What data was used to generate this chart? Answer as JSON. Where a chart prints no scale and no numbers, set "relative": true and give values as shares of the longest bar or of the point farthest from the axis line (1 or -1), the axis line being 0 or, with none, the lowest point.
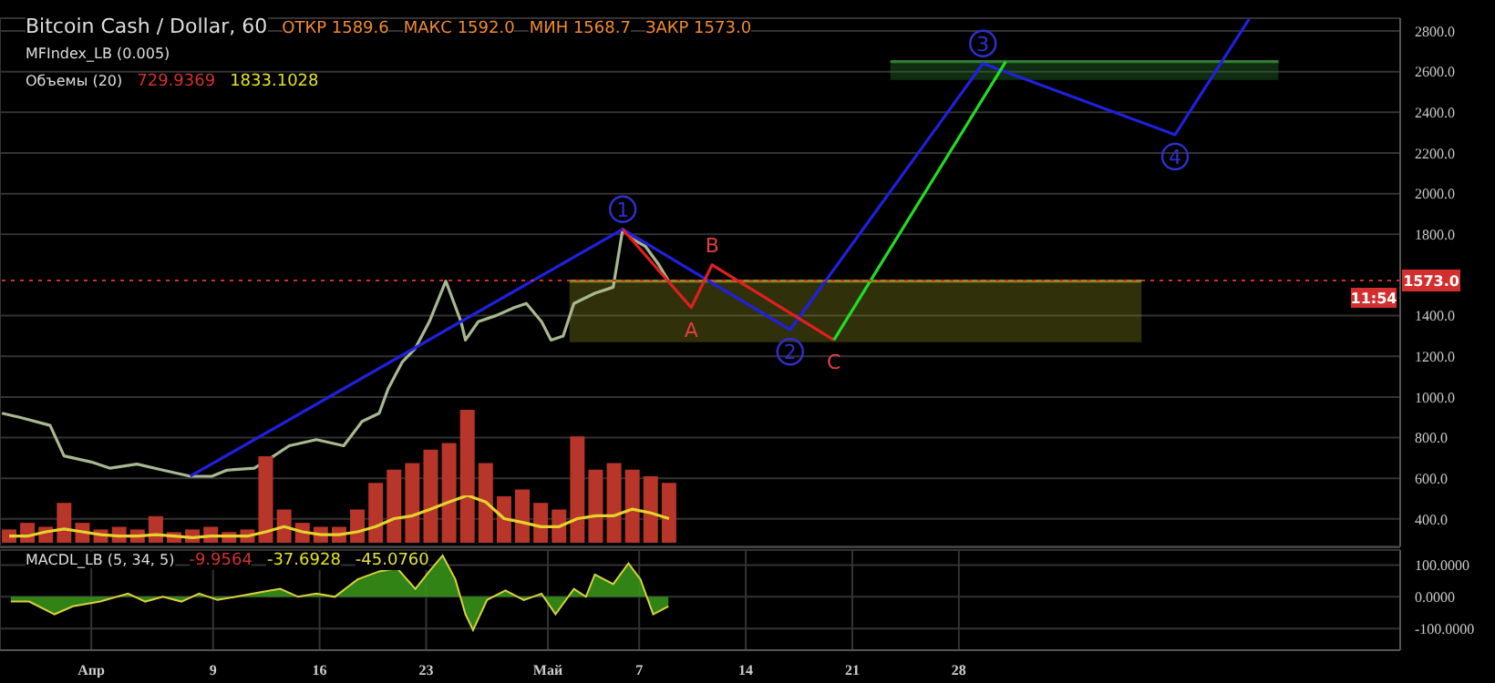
{
  "chart_data": [
    {
      "type": "line",
      "title": "Bitcoin Cash / Dollar, 60",
      "subtitle": "MFIndex_LB (0.005)",
      "annotations": [
        "ОТКР 1589.6",
        "МАКС 1592.0",
        "МИН 1568.7",
        "ЗАКР 1573.0",
        {
          "text": "1",
          "x": "--05-05T22:00",
          "y": 1825
        },
        {
          "text": "2",
          "x": "--05-16T22:00",
          "y": 1330
        },
        {
          "text": "3",
          "x": "--05-29T14:00",
          "y": 2640
        },
        {
          "text": "4",
          "x": "--06-11T05:00",
          "y": 2290
        },
        {
          "text": "A",
          "x": "--05-10T10:00",
          "y": 1440
        },
        {
          "text": "B",
          "x": "--05-11T19:00",
          "y": 1650
        },
        {
          "text": "C",
          "x": "--05-19T19:00",
          "y": 1280
        },
        "11:54"
      ],
      "xlim": [
        "--03-26T00:00",
        "--06-26T00:00"
      ],
      "xticks": [
        {
          "value": "--04-01T00:00",
          "label": "Апр"
        },
        {
          "value": "--04-09T00:00",
          "label": "9"
        },
        {
          "value": "--04-16T00:00",
          "label": "16"
        },
        {
          "value": "--04-23T00:00",
          "label": "23"
        },
        {
          "value": "--05-01T00:00",
          "label": "Май"
        },
        {
          "value": "--05-07T00:00",
          "label": "7"
        },
        {
          "value": "--05-14T00:00",
          "label": "14"
        },
        {
          "value": "--05-21T00:00",
          "label": "21"
        },
        {
          "value": "--05-28T00:00",
          "label": "28"
        }
      ],
      "ylim": [
        265,
        2863
      ],
      "yticks": [
        {
          "value": 400,
          "label": "400.0"
        },
        {
          "value": 600,
          "label": "600.0"
        },
        {
          "value": 800,
          "label": "800.0"
        },
        {
          "value": 1000,
          "label": "1000.0"
        },
        {
          "value": 1200,
          "label": "1200.0"
        },
        {
          "value": 1400,
          "label": "1400.0"
        },
        {
          "value": 1800,
          "label": "1800.0"
        },
        {
          "value": 2000,
          "label": "2000.0"
        },
        {
          "value": 2200,
          "label": "2200.0"
        },
        {
          "value": 2400,
          "label": "2400.0"
        },
        {
          "value": 2600,
          "label": "2600.0"
        },
        {
          "value": 2800,
          "label": "2800.0"
        }
      ],
      "grid": true,
      "tick_labels": "y",
      "marker": "none",
      "ref_lines": [
        {
          "axis": "y",
          "value": 1573,
          "label": "1573.0",
          "color": "#d32f2f",
          "line_style": "dotted"
        }
      ],
      "series": [
        {
          "type": "line",
          "color": "#8a8a20",
          "x": [
            "--05-02T10:00",
            "--06-09T00:00"
          ],
          "values": [
            1570,
            1570
          ],
          "lower": [
            1270,
            1270
          ],
          "upper": [
            1570,
            1570
          ]
        },
        {
          "type": "line",
          "color": "#2e7d32",
          "x": [
            "--05-23T12:00",
            "--06-18T00:00"
          ],
          "values": [
            2650,
            2650
          ],
          "lower": [
            2560,
            2560
          ],
          "upper": [
            2650,
            2650
          ]
        },
        {
          "type": "line",
          "color": "#a8b890",
          "x": [
            "--03-26T03:00",
            "--03-27T07:00",
            "--03-29T07:00",
            "--03-30T05:00",
            "--04-01T00:00",
            "--04-02T05:00",
            "--04-04T00:00",
            "--04-05T17:00",
            "--04-07T12:00",
            "--04-08T22:00",
            "--04-09T22:00",
            "--04-11T17:00",
            "--04-12T19:00",
            "--04-14T00:00",
            "--04-15T19:00",
            "--04-17T14:00",
            "--04-18T19:00",
            "--04-19T22:00",
            "--04-20T12:00",
            "--04-21T10:00",
            "--04-22T07:00",
            "--04-23T05:00",
            "--04-24T07:00",
            "--04-25T07:00",
            "--04-25T14:00",
            "--04-26T10:00",
            "--04-27T14:00",
            "--04-28T19:00",
            "--04-29T14:00",
            "--04-30T14:00",
            "--05-01T05:00",
            "--05-02T00:00",
            "--05-02T17:00",
            "--05-04T02:00",
            "--05-05T07:00",
            "--05-05T22:00",
            "--05-06T12:00",
            "--05-07T10:00",
            "--05-08T07:00",
            "--05-08T22:00"
          ],
          "values": [
            920,
            900,
            860,
            710,
            680,
            650,
            670,
            640,
            610,
            610,
            640,
            650,
            700,
            760,
            790,
            760,
            880,
            920,
            1040,
            1170,
            1240,
            1370,
            1570,
            1370,
            1280,
            1370,
            1400,
            1440,
            1460,
            1370,
            1280,
            1300,
            1460,
            1510,
            1540,
            1825,
            1780,
            1740,
            1650,
            1573
          ]
        },
        {
          "type": "line",
          "color": "#2020e0",
          "x": [
            "--04-07T12:00",
            "--05-05T22:00",
            "--05-16T22:00",
            "--05-29T14:00",
            "--06-11T05:00",
            "--06-16T02:00"
          ],
          "values": [
            610,
            1825,
            1330,
            2640,
            2290,
            2860
          ]
        },
        {
          "type": "line",
          "color": "#e02020",
          "x": [
            "--05-05T22:00",
            "--05-10T10:00",
            "--05-11T19:00",
            "--05-19T19:00"
          ],
          "values": [
            1825,
            1440,
            1650,
            1280
          ]
        },
        {
          "type": "line",
          "color": "#22dd22",
          "x": [
            "--05-19T19:00",
            "--05-31T02:00"
          ],
          "values": [
            1280,
            2650
          ]
        }
      ]
    },
    {
      "type": "bar",
      "title": "Объемы (20)",
      "annotations": [
        "729.9369",
        "1833.1028"
      ],
      "relative": true,
      "tick_labels": false,
      "categories": [
        null,
        null,
        null,
        null,
        null,
        null,
        null,
        null,
        null,
        null,
        null,
        null,
        null,
        null,
        null,
        null,
        null,
        null,
        null,
        null,
        null,
        null,
        null,
        null,
        null,
        null,
        null,
        null,
        null,
        null,
        null,
        null,
        null,
        null,
        null,
        null,
        null
      ],
      "series": [
        {
          "type": "bar",
          "color": "#b8352a",
          "values": [
            0.1,
            0.15,
            0.12,
            0.3,
            0.15,
            0.1,
            0.12,
            0.1,
            0.2,
            0.08,
            0.1,
            0.12,
            0.08,
            0.1,
            0.65,
            0.25,
            0.15,
            0.12,
            0.12,
            0.25,
            0.45,
            0.55,
            0.6,
            0.7,
            0.75,
            1,
            0.6,
            0.35,
            0.4,
            0.3,
            0.25,
            0.8,
            0.55,
            0.6,
            0.55,
            0.5,
            0.45
          ]
        }
      ]
    },
    {
      "type": "line",
      "relative": true,
      "tick_labels": false,
      "marker": "none",
      "categories": [
        null,
        null,
        null,
        null,
        null,
        null,
        null,
        null,
        null,
        null,
        null,
        null,
        null,
        null,
        null,
        null,
        null,
        null,
        null,
        null,
        null,
        null,
        null,
        null,
        null,
        null,
        null,
        null,
        null,
        null,
        null,
        null,
        null,
        null,
        null,
        null,
        null
      ],
      "series": [
        {
          "color": "#e6d22c",
          "values": [
            0.14,
            0.14,
            0.23,
            0.29,
            0.23,
            0.17,
            0.14,
            0.14,
            0.17,
            0.14,
            0.11,
            0.14,
            0.14,
            0.14,
            0.23,
            0.34,
            0.23,
            0.17,
            0.17,
            0.23,
            0.34,
            0.51,
            0.57,
            0.71,
            0.86,
            1,
            0.86,
            0.51,
            0.43,
            0.34,
            0.34,
            0.51,
            0.57,
            0.57,
            0.71,
            0.63,
            0.51
          ]
        }
      ]
    },
    {
      "type": "area",
      "title": "MACDL_LB (5, 34, 5)",
      "annotations": [
        "-9.9564",
        "-37.6928",
        "-45.0760"
      ],
      "xlim": [
        "--03-26T00:00",
        "--06-26T00:00"
      ],
      "xticks": [
        {
          "value": "--04-01T00:00",
          "label": "Апр"
        },
        {
          "value": "--04-09T00:00",
          "label": "9"
        },
        {
          "value": "--04-16T00:00",
          "label": "16"
        },
        {
          "value": "--04-23T00:00",
          "label": "23"
        },
        {
          "value": "--05-01T00:00",
          "label": "Май"
        },
        {
          "value": "--05-07T00:00",
          "label": "7"
        },
        {
          "value": "--05-14T00:00",
          "label": "14"
        },
        {
          "value": "--05-21T00:00",
          "label": "21"
        },
        {
          "value": "--05-28T00:00",
          "label": "28"
        }
      ],
      "ylim": [
        -168,
        147
      ],
      "yticks": [
        {
          "value": -100,
          "label": "-100.0000"
        },
        {
          "value": 0,
          "label": "0.0000"
        },
        {
          "value": 100,
          "label": "100.0000"
        }
      ],
      "grid": true,
      "x": [
        "--03-26T17:00",
        "--03-27T22:00",
        "--03-29T14:00",
        "--03-30T19:00",
        "--04-01T14:00",
        "--04-03T10:00",
        "--04-04T13:00",
        "--04-05T17:00",
        "--04-06T22:00",
        "--04-08T02:00",
        "--04-09T07:00",
        "--04-10T12:00",
        "--04-12T05:00",
        "--04-13T10:00",
        "--04-14T14:00",
        "--04-15T19:00",
        "--04-17T00:00",
        "--04-18T12:00",
        "--04-19T22:00",
        "--04-21T02:00",
        "--04-22T07:00",
        "--04-23T05:00",
        "--04-24T02:00",
        "--04-24T22:00",
        "--04-25T14:00",
        "--04-26T02:00",
        "--04-27T00:00",
        "--04-28T05:00",
        "--04-29T10:00",
        "--04-30T14:00",
        "--05-01T12:00",
        "--05-02T17:00",
        "--05-03T12:00",
        "--05-04T02:00",
        "--05-05T07:00",
        "--05-06T07:00",
        "--05-07T02:00",
        "--05-07T22:00",
        "--05-08T22:00"
      ],
      "series": [
        {
          "color": "#3a9a1a",
          "values": [
            -15,
            -15,
            -55,
            -30,
            -15,
            10,
            -15,
            0,
            -15,
            10,
            -10,
            0,
            15,
            25,
            0,
            10,
            0,
            55,
            80,
            90,
            25,
            80,
            130,
            55,
            -55,
            -105,
            -10,
            20,
            -10,
            10,
            -55,
            25,
            0,
            70,
            40,
            105,
            55,
            -55,
            -30
          ]
        }
      ]
    }
  ]
}
